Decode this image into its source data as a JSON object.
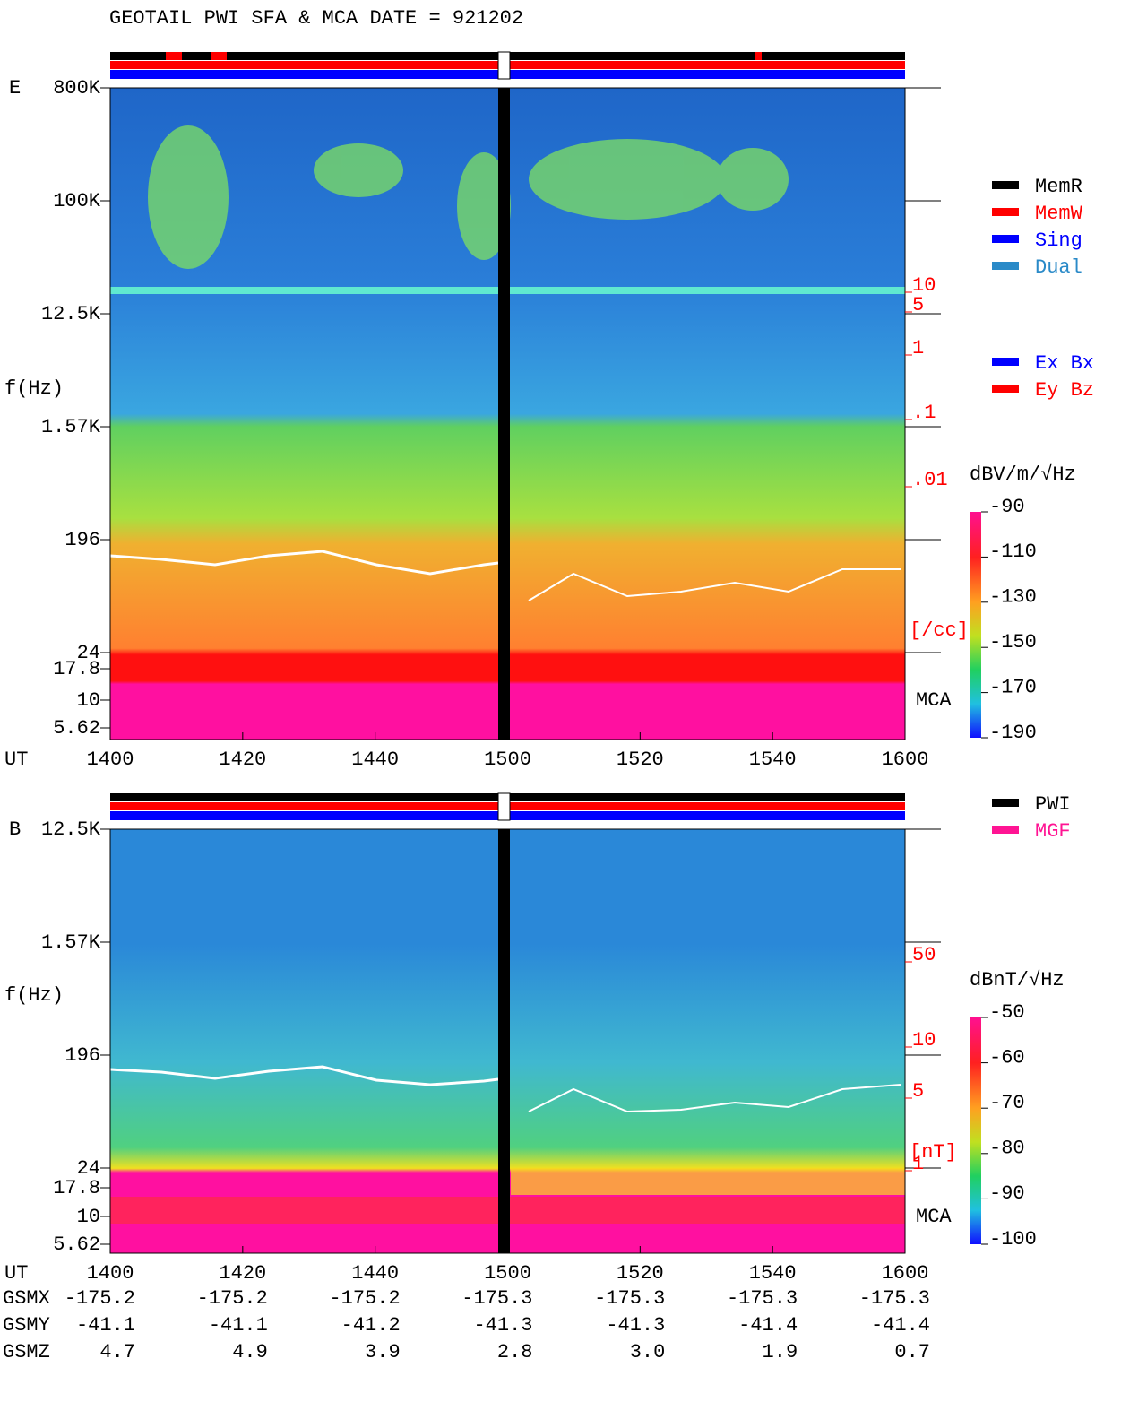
{
  "title": "GEOTAIL  PWI SFA & MCA   DATE = 921202",
  "legend_status": [
    {
      "name": "MemR",
      "color": "#000000"
    },
    {
      "name": "MemW",
      "color": "#ff0000"
    },
    {
      "name": "Sing",
      "color": "#0000ff"
    },
    {
      "name": "Dual",
      "color": "#2a8ac8"
    }
  ],
  "legend_component": [
    {
      "name": "Ex Bx",
      "color": "#0000ff"
    },
    {
      "name": "Ey Bz",
      "color": "#ff0000"
    }
  ],
  "legend_source": [
    {
      "name": "PWI",
      "color": "#000000"
    },
    {
      "name": "MGF",
      "color": "#ff1493"
    }
  ],
  "panels": [
    {
      "label": "E",
      "ylabel": "f(Hz)",
      "yticks": [
        "800K",
        "100K",
        "12.5K",
        "1.57K",
        "196",
        "24",
        "17.8",
        "10",
        "5.62"
      ],
      "density_ticks": [
        "10",
        "5",
        "1",
        ".1",
        ".01"
      ],
      "density_unit": "[/cc]",
      "mca": "MCA",
      "colorbar_title": "dBV/m/√Hz",
      "colorbar_ticks": [
        -90,
        -110,
        -130,
        -150,
        -170,
        -190
      ],
      "xlabel": "UT",
      "xticks": [
        "1400",
        "1420",
        "1440",
        "1500",
        "1520",
        "1540",
        "1600"
      ]
    },
    {
      "label": "B",
      "ylabel": "f(Hz)",
      "yticks": [
        "12.5K",
        "1.57K",
        "196",
        "24",
        "17.8",
        "10",
        "5.62"
      ],
      "density_ticks": [
        "50",
        "10",
        "5",
        "1"
      ],
      "density_unit": "[nT]",
      "mca": "MCA",
      "colorbar_title": "dBnT/√Hz",
      "colorbar_ticks": [
        -50,
        -60,
        -70,
        -80,
        -90,
        -100
      ],
      "xlabel": "UT",
      "xticks": [
        "1400",
        "1420",
        "1440",
        "1500",
        "1520",
        "1540",
        "1600"
      ]
    }
  ],
  "orbit": [
    {
      "name": "GSMX",
      "values": [
        "-175.2",
        "-175.2",
        "-175.2",
        "-175.3",
        "-175.3",
        "-175.3",
        "-175.3"
      ]
    },
    {
      "name": "GSMY",
      "values": [
        "-41.1",
        "-41.1",
        "-41.2",
        "-41.3",
        "-41.3",
        "-41.4",
        "-41.4"
      ]
    },
    {
      "name": "GSMZ",
      "values": [
        "4.7",
        "4.9",
        "3.9",
        "2.8",
        "3.0",
        "1.9",
        "0.7"
      ]
    }
  ]
}
